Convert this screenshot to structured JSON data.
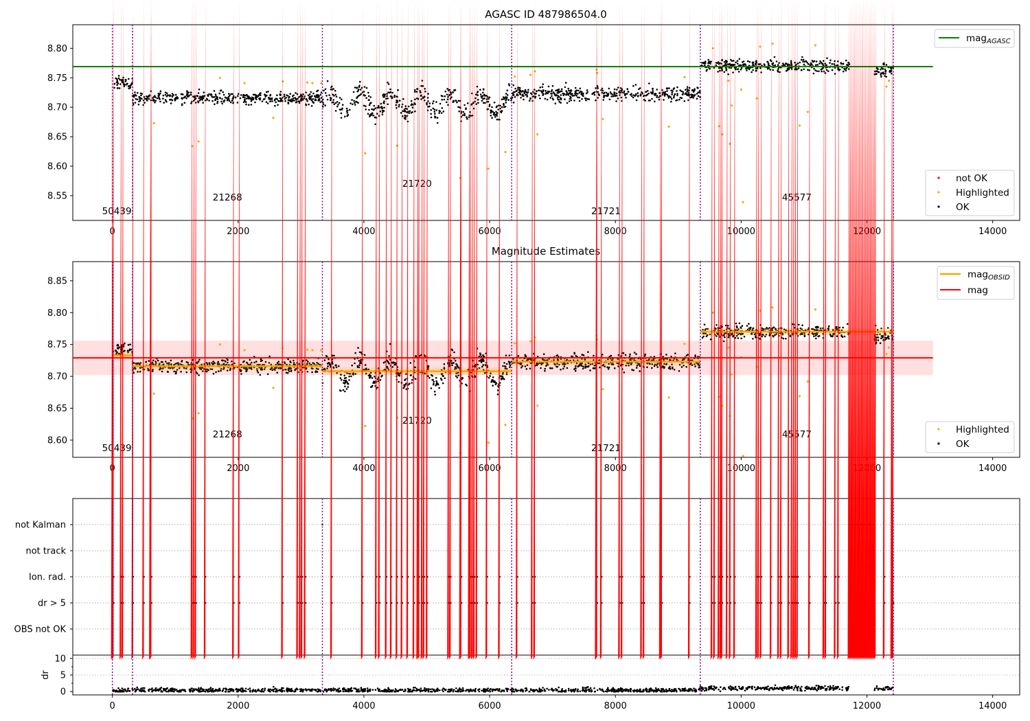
{
  "figure": {
    "title_top": "AGASC ID 487986504.0",
    "title_middle": "Magnitude Estimates",
    "x_ticks": [
      "0",
      "2000",
      "4000",
      "6000",
      "8000",
      "10000",
      "12000",
      "14000"
    ]
  },
  "colors": {
    "ok": "#000000",
    "highlighted": "#ffa500",
    "not_ok": "#ff0000",
    "agasc_line": "#008000",
    "mag_line": "#ff0000",
    "obsid_line": "#ffa500",
    "boundary": "#800080"
  },
  "obsid_segments": [
    {
      "obsid": "50439",
      "start": 0,
      "end": 320,
      "mag": 8.733
    },
    {
      "obsid": "21268",
      "start": 320,
      "end": 3340,
      "mag": 8.716
    },
    {
      "obsid": "21720",
      "start": 3340,
      "end": 6350,
      "mag": 8.708
    },
    {
      "obsid": "21721",
      "start": 6350,
      "end": 9350,
      "mag": 8.723
    },
    {
      "obsid": "45577",
      "start": 9350,
      "end": 12420,
      "mag": 8.77
    }
  ],
  "legends": {
    "top_lines": [
      "mag",
      "AGASC"
    ],
    "top_markers": [
      "not OK",
      "Highlighted",
      "OK"
    ],
    "mid_lines": [
      {
        "label": "mag",
        "sub": "OBSID"
      },
      {
        "label": "mag",
        "sub": ""
      }
    ],
    "mid_markers": [
      "Highlighted",
      "OK"
    ]
  },
  "flags_panel": {
    "rows": [
      "not Kalman",
      "not track",
      "Ion. rad.",
      "dr > 5",
      "OBS not OK"
    ]
  },
  "dr_panel": {
    "ylabel": "dr",
    "y_ticks": [
      "0",
      "5",
      "10"
    ]
  },
  "chart_data": [
    {
      "type": "scatter",
      "title": "AGASC ID 487986504.0",
      "xlim": [
        -630,
        14430
      ],
      "ylim": [
        8.508,
        8.84
      ],
      "y_ticks": [
        "8.55",
        "8.60",
        "8.65",
        "8.70",
        "8.75",
        "8.80"
      ],
      "x_ticks": [
        "0",
        "2000",
        "4000",
        "6000",
        "8000",
        "10000",
        "12000",
        "14000"
      ],
      "mag_agasc": 8.769,
      "legend_placement": [
        "upper right",
        "lower right"
      ],
      "series": [
        {
          "name": "OK",
          "segments": [
            {
              "x_range": [
                0,
                320
              ],
              "y_center": 8.737,
              "y_spread": 0.012
            },
            {
              "x_range": [
                320,
                3340
              ],
              "y_center": 8.716,
              "y_spread": 0.012
            },
            {
              "x_range": [
                3340,
                6350
              ],
              "y_center": 8.707,
              "y_spread": 0.02
            },
            {
              "x_range": [
                6350,
                9350
              ],
              "y_center": 8.723,
              "y_spread": 0.014
            },
            {
              "x_range": [
                9350,
                11720
              ],
              "y_center": 8.77,
              "y_spread": 0.012
            },
            {
              "x_range": [
                12120,
                12420
              ],
              "y_center": 8.764,
              "y_spread": 0.012
            }
          ]
        },
        {
          "name": "Highlighted",
          "points": [
            [
              660,
              8.673
            ],
            [
              1270,
              8.634
            ],
            [
              1370,
              8.642
            ],
            [
              1710,
              8.75
            ],
            [
              2100,
              8.741
            ],
            [
              2560,
              8.682
            ],
            [
              2710,
              8.744
            ],
            [
              3100,
              8.742
            ],
            [
              3180,
              8.741
            ],
            [
              3320,
              8.741
            ],
            [
              4020,
              8.622
            ],
            [
              4530,
              8.635
            ],
            [
              5530,
              8.58
            ],
            [
              5980,
              8.596
            ],
            [
              6250,
              8.624
            ],
            [
              6400,
              8.752
            ],
            [
              6650,
              8.755
            ],
            [
              6720,
              8.761
            ],
            [
              6760,
              8.654
            ],
            [
              7700,
              8.764
            ],
            [
              7710,
              8.758
            ],
            [
              7800,
              8.68
            ],
            [
              8850,
              8.667
            ],
            [
              9100,
              8.751
            ],
            [
              9550,
              8.8
            ],
            [
              9650,
              8.668
            ],
            [
              9700,
              8.654
            ],
            [
              9800,
              8.745
            ],
            [
              9820,
              8.638
            ],
            [
              9850,
              8.703
            ],
            [
              10000,
              8.73
            ],
            [
              10030,
              8.539
            ],
            [
              10250,
              8.715
            ],
            [
              10300,
              8.803
            ],
            [
              10500,
              8.808
            ],
            [
              10930,
              8.669
            ],
            [
              11060,
              8.692
            ],
            [
              11180,
              8.805
            ],
            [
              12310,
              8.735
            ],
            [
              12350,
              8.745
            ]
          ]
        }
      ]
    },
    {
      "type": "scatter",
      "title": "Magnitude Estimates",
      "xlim": [
        -630,
        14430
      ],
      "ylim": [
        8.573,
        8.88
      ],
      "y_ticks": [
        "8.60",
        "8.65",
        "8.70",
        "8.75",
        "8.80",
        "8.85"
      ],
      "mag": 8.729,
      "mag_band": [
        8.702,
        8.756
      ],
      "mag_obsid": [
        8.733,
        8.716,
        8.708,
        8.723,
        8.77
      ],
      "legend_placement": [
        "upper right",
        "lower right"
      ]
    },
    {
      "type": "scatter",
      "title": "",
      "xlim": [
        -630,
        14430
      ],
      "rows": [
        "not Kalman",
        "not track",
        "Ion. rad.",
        "dr > 5",
        "OBS not OK"
      ],
      "not_kalman_x_range": [
        11740,
        12100
      ],
      "flag_times": [
        5,
        20,
        140,
        170,
        330,
        500,
        610,
        620,
        1270,
        1300,
        1330,
        1480,
        1930,
        2020,
        2710,
        2950,
        2990,
        3020,
        3070,
        3490,
        3980,
        4200,
        4250,
        4360,
        4440,
        4530,
        4610,
        4700,
        4800,
        4860,
        4880,
        4930,
        4960,
        5010,
        5350,
        5380,
        5540,
        5550,
        5680,
        5700,
        5730,
        5760,
        5800,
        5960,
        6160,
        6440,
        6680,
        6720,
        7700,
        7710,
        7780,
        8070,
        8110,
        8420,
        8460,
        8720,
        8740,
        9180,
        9540,
        9580,
        9650,
        9680,
        9700,
        9780,
        9830,
        9900,
        10250,
        10280,
        10320,
        10480,
        10600,
        10640,
        10760,
        10810,
        10840,
        10870,
        10900,
        11090,
        11320,
        11350,
        11500,
        11550,
        11720,
        12280,
        12400,
        12420
      ]
    },
    {
      "type": "scatter",
      "title": "",
      "xlim": [
        -630,
        14430
      ],
      "ylim": [
        -1,
        11
      ],
      "ylabel": "dr",
      "y_ticks": [
        "0",
        "5",
        "10"
      ],
      "dr_level": 0.4,
      "dr_level_late": 1.0,
      "dr_clip": 10
    }
  ]
}
